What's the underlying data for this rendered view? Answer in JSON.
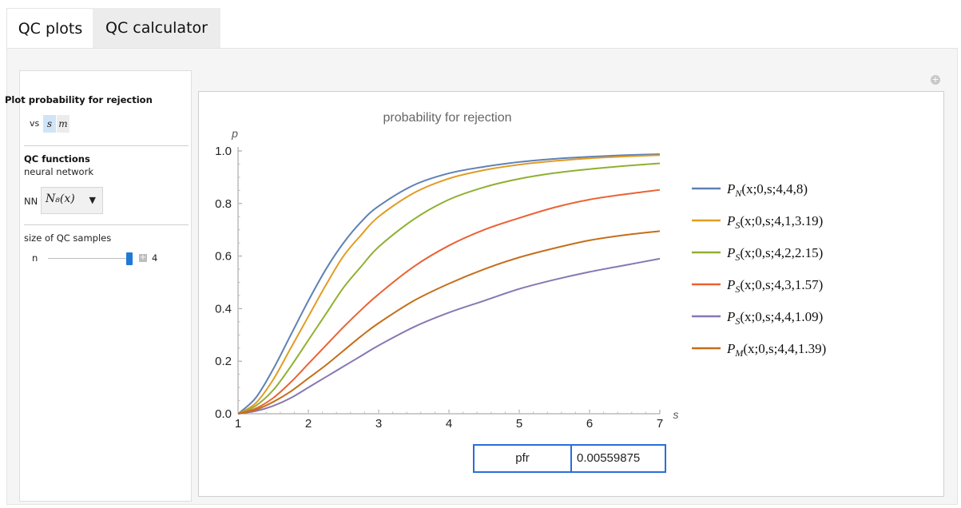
{
  "tabs": [
    {
      "label": "QC plots",
      "active": true
    },
    {
      "label": "QC calculator",
      "active": false
    }
  ],
  "sidebar": {
    "plot_title": "Plot probability for rejection",
    "vs_label": "vs",
    "vs_options": [
      "s",
      "m"
    ],
    "vs_selected": "s",
    "qc_title": "QC functions",
    "qc_subtitle": "neural network",
    "nn_label": "NN",
    "nn_selected": "N₈(x)",
    "size_label": "size of QC samples",
    "n_label": "n",
    "n_value": "4",
    "n_slider_fraction": 1.0
  },
  "icons": {
    "add_plot": "plus-circle-icon",
    "dropdown_arrow": "triangle-down-icon",
    "slider_increment": "plus-icon"
  },
  "chart_data": {
    "type": "line",
    "title": "probability for rejection",
    "xlabel": "s",
    "ylabel": "p",
    "xlim": [
      1,
      7
    ],
    "ylim": [
      0,
      1
    ],
    "xticks": [
      "1",
      "2",
      "3",
      "4",
      "5",
      "6",
      "7"
    ],
    "yticks": [
      "0.0",
      "0.2",
      "0.4",
      "0.6",
      "0.8",
      "1.0"
    ],
    "x": [
      1,
      1.25,
      1.5,
      1.75,
      2,
      2.25,
      2.5,
      2.75,
      3,
      3.5,
      4,
      4.5,
      5,
      5.5,
      6,
      6.5,
      7
    ],
    "series": [
      {
        "name": "P_N(x;0,s;4,4,8)",
        "color": "#5e81b5",
        "values": [
          0.0,
          0.06,
          0.17,
          0.3,
          0.43,
          0.55,
          0.65,
          0.73,
          0.79,
          0.87,
          0.915,
          0.94,
          0.958,
          0.97,
          0.978,
          0.984,
          0.988
        ]
      },
      {
        "name": "P_S(x;0,s;4,1,3.19)",
        "color": "#e19c24",
        "values": [
          0.0,
          0.04,
          0.13,
          0.25,
          0.37,
          0.49,
          0.6,
          0.68,
          0.75,
          0.84,
          0.895,
          0.927,
          0.948,
          0.962,
          0.972,
          0.979,
          0.984
        ]
      },
      {
        "name": "P_S(x;0,s;4,2,2.15)",
        "color": "#8fb032",
        "values": [
          0.0,
          0.03,
          0.09,
          0.18,
          0.28,
          0.38,
          0.48,
          0.56,
          0.635,
          0.74,
          0.815,
          0.862,
          0.894,
          0.916,
          0.931,
          0.943,
          0.953
        ]
      },
      {
        "name": "P_S(x;0,s;4,3,1.57)",
        "color": "#eb6235",
        "values": [
          0.0,
          0.02,
          0.06,
          0.12,
          0.19,
          0.26,
          0.33,
          0.395,
          0.455,
          0.56,
          0.64,
          0.7,
          0.745,
          0.785,
          0.815,
          0.835,
          0.852
        ]
      },
      {
        "name": "P_S(x;0,s;4,4,1.09)",
        "color": "#8778b3",
        "values": [
          0.0,
          0.01,
          0.03,
          0.06,
          0.1,
          0.14,
          0.18,
          0.22,
          0.26,
          0.33,
          0.385,
          0.43,
          0.475,
          0.51,
          0.54,
          0.565,
          0.59
        ]
      },
      {
        "name": "P_M(x;0,s;4,4,1.39)",
        "color": "#c56e1a",
        "values": [
          0.0,
          0.015,
          0.045,
          0.085,
          0.135,
          0.185,
          0.24,
          0.295,
          0.345,
          0.43,
          0.495,
          0.55,
          0.595,
          0.63,
          0.66,
          0.68,
          0.695
        ]
      }
    ],
    "legend": [
      {
        "sym": "P",
        "sub": "N",
        "args": "(x;0,s;4,4,8)"
      },
      {
        "sym": "P",
        "sub": "S",
        "args": "(x;0,s;4,1,3.19)"
      },
      {
        "sym": "P",
        "sub": "S",
        "args": "(x;0,s;4,2,2.15)"
      },
      {
        "sym": "P",
        "sub": "S",
        "args": "(x;0,s;4,3,1.57)"
      },
      {
        "sym": "P",
        "sub": "S",
        "args": "(x;0,s;4,4,1.09)"
      },
      {
        "sym": "P",
        "sub": "M",
        "args": "(x;0,s;4,4,1.39)"
      }
    ],
    "legend_position": "right"
  },
  "result": {
    "label": "pfr",
    "value": "0.00559875"
  }
}
